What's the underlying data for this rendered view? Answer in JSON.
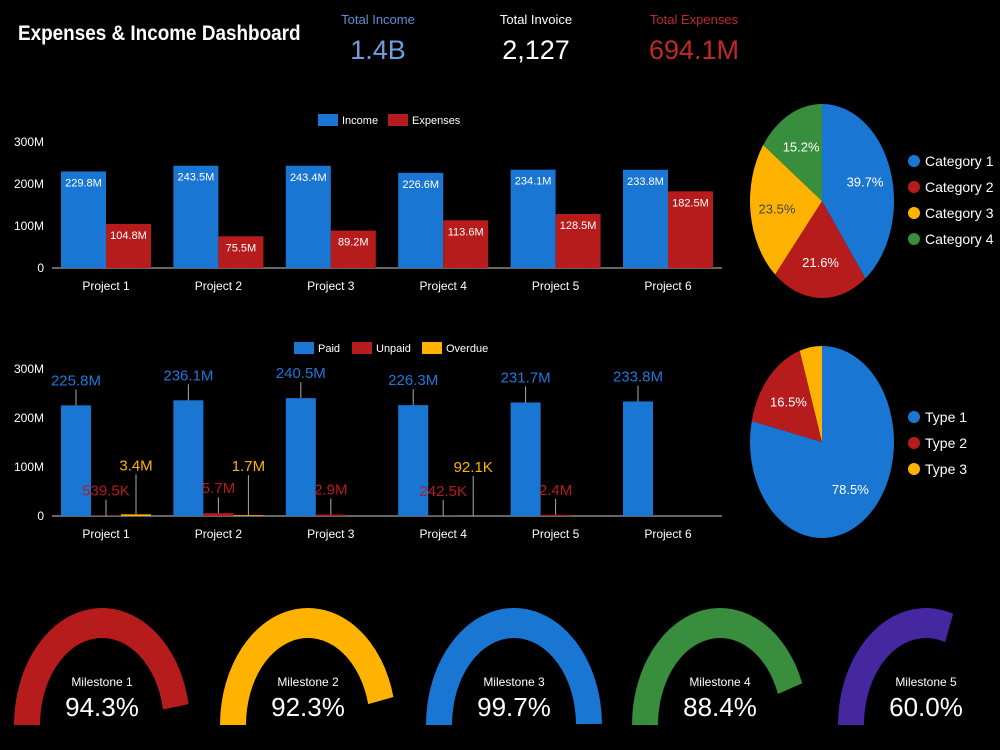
{
  "header": {
    "title": "Expenses & Income Dashboard"
  },
  "kpis": [
    {
      "label": "Total Income",
      "value": "1.4B",
      "color": "#6e9fe0",
      "label_color": "#5b8fd6"
    },
    {
      "label": "Total Invoice",
      "value": "2,127",
      "color": "#ffffff",
      "label_color": "#ffffff"
    },
    {
      "label": "Total Expenses",
      "value": "694.1M",
      "color": "#c0282a",
      "label_color": "#c0282a"
    }
  ],
  "chart_data": [
    {
      "type": "bar",
      "categories": [
        "Project 1",
        "Project 2",
        "Project 3",
        "Project 4",
        "Project 5",
        "Project 6"
      ],
      "series": [
        {
          "name": "Income",
          "color": "#1976d2",
          "values": [
            229.8,
            243.5,
            243.4,
            226.6,
            234.1,
            233.8
          ],
          "labels": [
            "229.8M",
            "243.5M",
            "243.4M",
            "226.6M",
            "234.1M",
            "233.8M"
          ]
        },
        {
          "name": "Expenses",
          "color": "#b71c1c",
          "values": [
            104.8,
            75.5,
            89.2,
            113.6,
            128.5,
            182.5
          ],
          "labels": [
            "104.8M",
            "75.5M",
            "89.2M",
            "113.6M",
            "128.5M",
            "182.5M"
          ]
        }
      ],
      "yticks": [
        "0",
        "100M",
        "200M",
        "300M"
      ],
      "ylim": [
        0,
        300
      ],
      "legend": "top"
    },
    {
      "type": "bar",
      "categories": [
        "Project 1",
        "Project 2",
        "Project 3",
        "Project 4",
        "Project 5",
        "Project 6"
      ],
      "series": [
        {
          "name": "Paid",
          "color": "#1976d2",
          "values": [
            225.8,
            236.1,
            240.5,
            226.3,
            231.7,
            233.8
          ],
          "labels": [
            "225.8M",
            "236.1M",
            "240.5M",
            "226.3M",
            "231.7M",
            "233.8M"
          ]
        },
        {
          "name": "Unpaid",
          "color": "#b71c1c",
          "values": [
            0.5395,
            5.7,
            2.9,
            0.2425,
            2.4,
            0
          ],
          "labels": [
            "539.5K",
            "5.7M",
            "2.9M",
            "242.5K",
            "2.4M",
            ""
          ]
        },
        {
          "name": "Overdue",
          "color": "#ffb300",
          "values": [
            3.4,
            1.7,
            0,
            0.0921,
            0,
            0
          ],
          "labels": [
            "3.4M",
            "1.7M",
            "",
            "92.1K",
            "",
            ""
          ]
        }
      ],
      "yticks": [
        "0",
        "100M",
        "200M",
        "300M"
      ],
      "ylim": [
        0,
        300
      ],
      "legend": "top"
    },
    {
      "type": "pie",
      "slices": [
        {
          "name": "Category 1",
          "value": 39.7,
          "label": "39.7%",
          "color": "#1976d2"
        },
        {
          "name": "Category 2",
          "value": 21.6,
          "label": "21.6%",
          "color": "#b71c1c"
        },
        {
          "name": "Category 3",
          "value": 23.5,
          "label": "23.5%",
          "color": "#ffb300"
        },
        {
          "name": "Category 4",
          "value": 15.2,
          "label": "15.2%",
          "color": "#388e3c"
        }
      ],
      "legend": "right"
    },
    {
      "type": "pie",
      "slices": [
        {
          "name": "Type 1",
          "value": 78.5,
          "label": "78.5%",
          "color": "#1976d2"
        },
        {
          "name": "Type 2",
          "value": 16.5,
          "label": "16.5%",
          "color": "#b71c1c"
        },
        {
          "name": "Type 3",
          "value": 5.0,
          "label": "",
          "color": "#ffb300"
        }
      ],
      "legend": "right"
    }
  ],
  "gauges": [
    {
      "label": "Milestone 1",
      "value": 94.3,
      "text": "94.3%",
      "color": "#b71c1c"
    },
    {
      "label": "Milestone 2",
      "value": 92.3,
      "text": "92.3%",
      "color": "#ffb300"
    },
    {
      "label": "Milestone 3",
      "value": 99.7,
      "text": "99.7%",
      "color": "#1976d2"
    },
    {
      "label": "Milestone 4",
      "value": 88.4,
      "text": "88.4%",
      "color": "#388e3c"
    },
    {
      "label": "Milestone 5",
      "value": 60.0,
      "text": "60.0%",
      "color": "#4527a0"
    }
  ]
}
